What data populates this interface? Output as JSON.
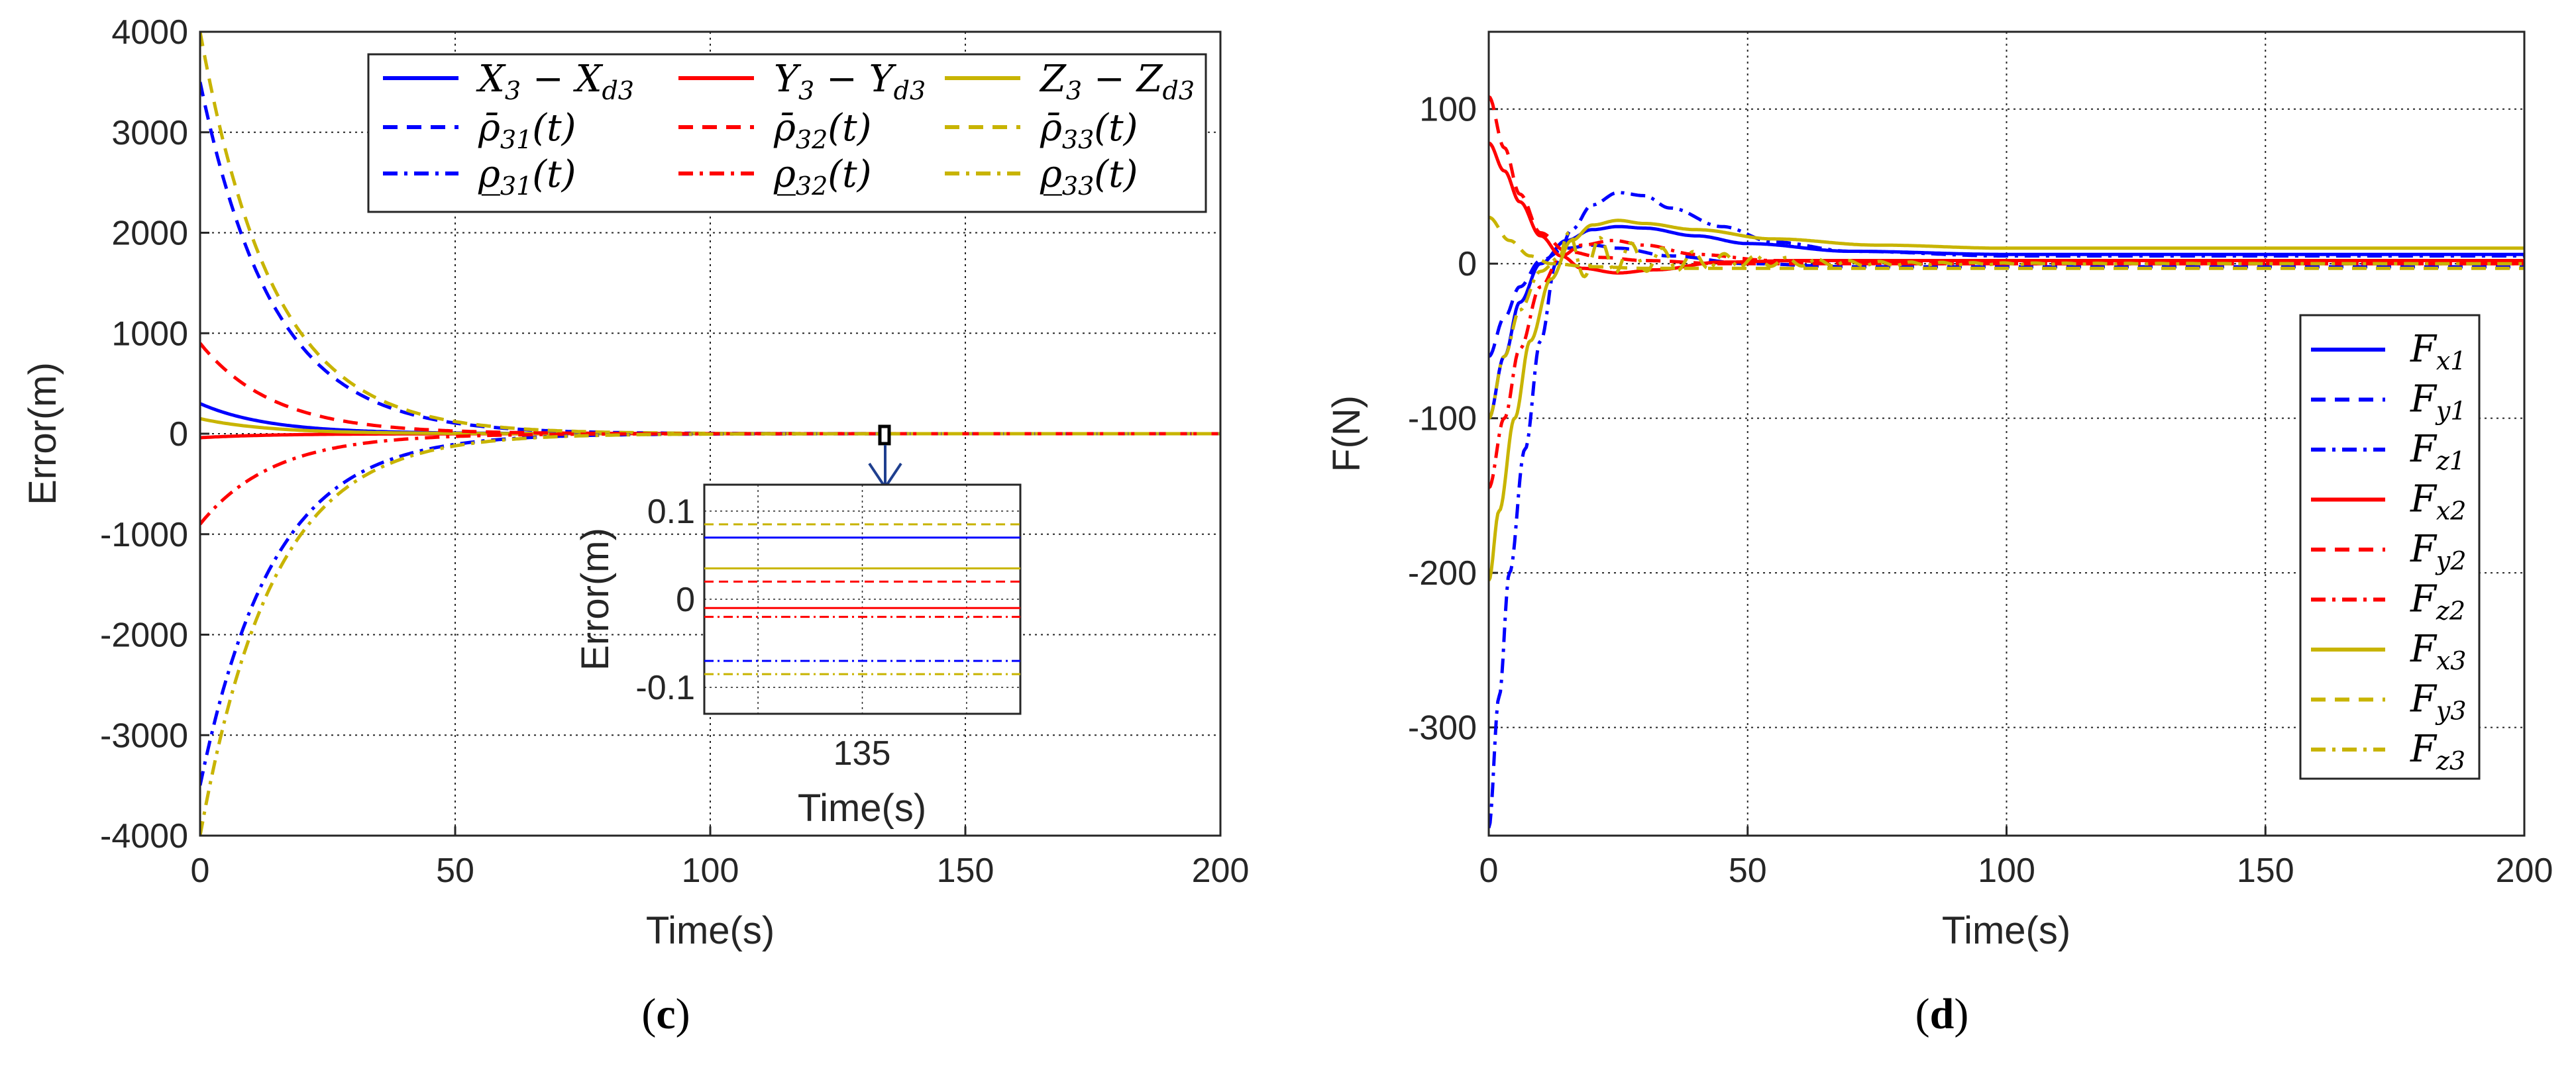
{
  "chart_data": [
    {
      "type": "line",
      "panel": "c",
      "caption_letter": "c",
      "xlabel": "Time(s)",
      "ylabel": "Error(m)",
      "xlim": [
        0,
        200
      ],
      "ylim": [
        -4000,
        4000
      ],
      "xticks": [
        0,
        50,
        100,
        150,
        200
      ],
      "yticks": [
        -4000,
        -3000,
        -2000,
        -1000,
        0,
        1000,
        2000,
        3000,
        4000
      ],
      "grid": true,
      "legend_position": "top-right",
      "legend": [
        {
          "main": "X",
          "sub": "3",
          "tail": " − X",
          "tailsub": "d3",
          "color": "#0000ff",
          "dash": "solid"
        },
        {
          "main": "Y",
          "sub": "3",
          "tail": " − Y",
          "tailsub": "d3",
          "color": "#ff0000",
          "dash": "solid"
        },
        {
          "main": "Z",
          "sub": "3",
          "tail": " − Z",
          "tailsub": "d3",
          "color": "#c8b400",
          "dash": "solid"
        },
        {
          "main": "ρ̄",
          "sub": "31",
          "tail": "(t)",
          "tailsub": "",
          "color": "#0000ff",
          "dash": "dashed"
        },
        {
          "main": "ρ̄",
          "sub": "32",
          "tail": "(t)",
          "tailsub": "",
          "color": "#ff0000",
          "dash": "dashed"
        },
        {
          "main": "ρ̄",
          "sub": "33",
          "tail": "(t)",
          "tailsub": "",
          "color": "#c8b400",
          "dash": "dashed"
        },
        {
          "main": "ρ̲",
          "sub": "31",
          "tail": "(t)",
          "tailsub": "",
          "color": "#0000ff",
          "dash": "dashdot"
        },
        {
          "main": "ρ̲",
          "sub": "32",
          "tail": "(t)",
          "tailsub": "",
          "color": "#ff0000",
          "dash": "dashdot"
        },
        {
          "main": "ρ̲",
          "sub": "33",
          "tail": "(t)",
          "tailsub": "",
          "color": "#c8b400",
          "dash": "dashdot"
        }
      ],
      "series": [
        {
          "name": "X3 - Xd3",
          "color": "#0000ff",
          "dash": "solid",
          "model": "exp",
          "start": 300,
          "final": 0.07,
          "rate": 0.075
        },
        {
          "name": "Y3 - Yd3",
          "color": "#ff0000",
          "dash": "solid",
          "model": "exp",
          "start": -40,
          "final": -0.01,
          "rate": 0.075
        },
        {
          "name": "Z3 - Zd3",
          "color": "#c8b400",
          "dash": "solid",
          "model": "exp",
          "start": 150,
          "final": 0.035,
          "rate": 0.075
        },
        {
          "name": "rho_bar_31(t)",
          "color": "#0000ff",
          "dash": "dashed",
          "model": "exp",
          "start": 3500,
          "final": 0.07,
          "rate": 0.07
        },
        {
          "name": "rho_bar_32(t)",
          "color": "#ff0000",
          "dash": "dashed",
          "model": "exp",
          "start": 900,
          "final": 0.02,
          "rate": 0.07
        },
        {
          "name": "rho_bar_33(t)",
          "color": "#c8b400",
          "dash": "dashed",
          "model": "exp",
          "start": 4000,
          "final": 0.085,
          "rate": 0.07
        },
        {
          "name": "rho_under_31(t)",
          "color": "#0000ff",
          "dash": "dashdot",
          "model": "exp",
          "start": -3500,
          "final": -0.07,
          "rate": 0.07
        },
        {
          "name": "rho_under_32(t)",
          "color": "#ff0000",
          "dash": "dashdot",
          "model": "exp",
          "start": -900,
          "final": -0.02,
          "rate": 0.07
        },
        {
          "name": "rho_under_33(t)",
          "color": "#c8b400",
          "dash": "dashdot",
          "model": "exp",
          "start": -4000,
          "final": -0.085,
          "rate": 0.07
        }
      ],
      "inset": {
        "ylabel": "Error(m)",
        "xlabel": "Time(s)",
        "xtick_label": "135",
        "ylim": [
          -0.13,
          0.13
        ],
        "yticks": [
          -0.1,
          0,
          0.1
        ],
        "zoom_center_x": 135,
        "lines": [
          {
            "color": "#c8b400",
            "dash": "dashed",
            "value": 0.085
          },
          {
            "color": "#0000ff",
            "dash": "solid",
            "value": 0.07
          },
          {
            "color": "#c8b400",
            "dash": "solid",
            "value": 0.035
          },
          {
            "color": "#ff0000",
            "dash": "dashed",
            "value": 0.02
          },
          {
            "color": "#ff0000",
            "dash": "solid",
            "value": -0.01
          },
          {
            "color": "#ff0000",
            "dash": "dashdot",
            "value": -0.02
          },
          {
            "color": "#0000ff",
            "dash": "dashdot",
            "value": -0.07
          },
          {
            "color": "#c8b400",
            "dash": "dashdot",
            "value": -0.085
          }
        ]
      }
    },
    {
      "type": "line",
      "panel": "d",
      "caption_letter": "d",
      "xlabel": "Time(s)",
      "ylabel": "F(N)",
      "xlim": [
        0,
        200
      ],
      "ylim": [
        -370,
        150
      ],
      "xticks": [
        0,
        50,
        100,
        150,
        200
      ],
      "yticks": [
        -300,
        -200,
        -100,
        0,
        100
      ],
      "grid": true,
      "legend_position": "right",
      "legend": [
        {
          "main": "F",
          "sub": "x1",
          "color": "#0000ff",
          "dash": "solid"
        },
        {
          "main": "F",
          "sub": "y1",
          "color": "#0000ff",
          "dash": "dashed"
        },
        {
          "main": "F",
          "sub": "z1",
          "color": "#0000ff",
          "dash": "dashdot"
        },
        {
          "main": "F",
          "sub": "x2",
          "color": "#ff0000",
          "dash": "solid"
        },
        {
          "main": "F",
          "sub": "y2",
          "color": "#ff0000",
          "dash": "dashed"
        },
        {
          "main": "F",
          "sub": "z2",
          "color": "#ff0000",
          "dash": "dashdot"
        },
        {
          "main": "F",
          "sub": "x3",
          "color": "#c8b400",
          "dash": "solid"
        },
        {
          "main": "F",
          "sub": "y3",
          "color": "#c8b400",
          "dash": "dashed"
        },
        {
          "main": "F",
          "sub": "z3",
          "color": "#c8b400",
          "dash": "dashdot"
        }
      ],
      "series": [
        {
          "name": "Fx1",
          "color": "#0000ff",
          "dash": "solid",
          "points": [
            [
              0,
              -100
            ],
            [
              3,
              -60
            ],
            [
              6,
              -25
            ],
            [
              10,
              0
            ],
            [
              15,
              15
            ],
            [
              20,
              22
            ],
            [
              25,
              24
            ],
            [
              30,
              23
            ],
            [
              40,
              18
            ],
            [
              50,
              13
            ],
            [
              70,
              8
            ],
            [
              100,
              6
            ],
            [
              200,
              6
            ]
          ]
        },
        {
          "name": "Fy1",
          "color": "#0000ff",
          "dash": "dashed",
          "points": [
            [
              0,
              -60
            ],
            [
              3,
              -35
            ],
            [
              6,
              -15
            ],
            [
              10,
              2
            ],
            [
              15,
              10
            ],
            [
              20,
              12
            ],
            [
              25,
              10
            ],
            [
              35,
              5
            ],
            [
              50,
              0
            ],
            [
              70,
              -2
            ],
            [
              100,
              -2
            ],
            [
              200,
              -2
            ]
          ]
        },
        {
          "name": "Fz1",
          "color": "#0000ff",
          "dash": "dashdot",
          "points": [
            [
              0,
              -365
            ],
            [
              2,
              -280
            ],
            [
              4,
              -200
            ],
            [
              7,
              -120
            ],
            [
              10,
              -50
            ],
            [
              13,
              0
            ],
            [
              16,
              22
            ],
            [
              20,
              38
            ],
            [
              25,
              46
            ],
            [
              30,
              44
            ],
            [
              35,
              36
            ],
            [
              45,
              24
            ],
            [
              55,
              14
            ],
            [
              70,
              8
            ],
            [
              100,
              5
            ],
            [
              200,
              5
            ]
          ]
        },
        {
          "name": "Fx2",
          "color": "#ff0000",
          "dash": "solid",
          "points": [
            [
              0,
              78
            ],
            [
              3,
              60
            ],
            [
              6,
              40
            ],
            [
              10,
              18
            ],
            [
              14,
              5
            ],
            [
              18,
              -3
            ],
            [
              25,
              -6
            ],
            [
              32,
              -4
            ],
            [
              45,
              1
            ],
            [
              60,
              2
            ],
            [
              80,
              2
            ],
            [
              200,
              2
            ]
          ]
        },
        {
          "name": "Fy2",
          "color": "#ff0000",
          "dash": "dashed",
          "points": [
            [
              0,
              108
            ],
            [
              3,
              75
            ],
            [
              6,
              45
            ],
            [
              10,
              20
            ],
            [
              15,
              8
            ],
            [
              22,
              4
            ],
            [
              30,
              2
            ],
            [
              45,
              0
            ],
            [
              80,
              0
            ],
            [
              200,
              0
            ]
          ]
        },
        {
          "name": "Fz2",
          "color": "#ff0000",
          "dash": "dashdot",
          "points": [
            [
              0,
              -145
            ],
            [
              3,
              -100
            ],
            [
              6,
              -55
            ],
            [
              10,
              -15
            ],
            [
              14,
              5
            ],
            [
              18,
              12
            ],
            [
              24,
              15
            ],
            [
              30,
              12
            ],
            [
              40,
              6
            ],
            [
              55,
              2
            ],
            [
              80,
              0
            ],
            [
              200,
              0
            ]
          ]
        },
        {
          "name": "Fx3",
          "color": "#c8b400",
          "dash": "solid",
          "points": [
            [
              0,
              -205
            ],
            [
              2,
              -160
            ],
            [
              5,
              -100
            ],
            [
              8,
              -50
            ],
            [
              12,
              -10
            ],
            [
              16,
              15
            ],
            [
              20,
              25
            ],
            [
              25,
              28
            ],
            [
              30,
              26
            ],
            [
              40,
              22
            ],
            [
              55,
              16
            ],
            [
              75,
              12
            ],
            [
              100,
              10
            ],
            [
              200,
              10
            ]
          ]
        },
        {
          "name": "Fy3",
          "color": "#c8b400",
          "dash": "dashed",
          "points": [
            [
              0,
              30
            ],
            [
              4,
              15
            ],
            [
              8,
              5
            ],
            [
              12,
              0
            ],
            [
              20,
              -2
            ],
            [
              30,
              -3
            ],
            [
              50,
              -3
            ],
            [
              200,
              -3
            ]
          ]
        },
        {
          "name": "Fz3",
          "color": "#c8b400",
          "dash": "dashdot",
          "model": "oscill",
          "points": [
            [
              0,
              -100
            ],
            [
              3,
              -60
            ],
            [
              6,
              -30
            ],
            [
              10,
              -5
            ],
            [
              14,
              5
            ],
            [
              20,
              5
            ],
            [
              40,
              2
            ],
            [
              80,
              0
            ],
            [
              200,
              0
            ]
          ],
          "osc_amp": 16,
          "osc_period": 6,
          "osc_decay": 0.04,
          "osc_start": 14
        }
      ]
    }
  ]
}
